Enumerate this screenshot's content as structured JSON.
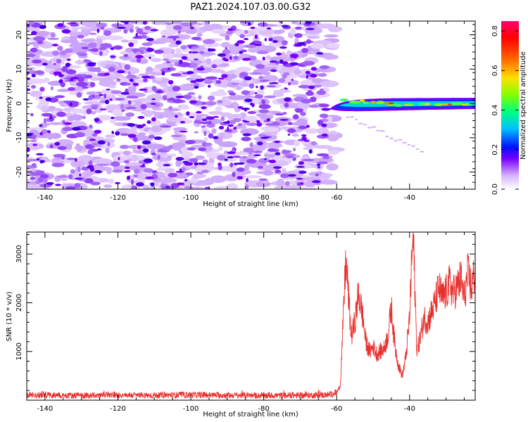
{
  "title": "PAZ1.2024.107.03.00.G32",
  "chart_data": [
    {
      "type": "heatmap",
      "xlabel": "Height of straight line (km)",
      "ylabel": "Frequency (Hz)",
      "xlim": [
        -145,
        -22
      ],
      "ylim": [
        -25,
        24
      ],
      "xticks": [
        "-140",
        "-120",
        "-100",
        "-80",
        "-60",
        "-40"
      ],
      "yticks": [
        "-20",
        "-10",
        "0",
        "10",
        "20"
      ],
      "colorbar": {
        "label": "Normalized spectral amplitude",
        "range": [
          0,
          0.85
        ],
        "ticks": [
          "0.0",
          "0.2",
          "0.4",
          "0.6",
          "0.8"
        ]
      },
      "description_values": {
        "noise_region_x": [
          -145,
          -62
        ],
        "noise_amplitude_range": [
          0.0,
          0.2
        ],
        "signal_region_x": [
          -62,
          -22
        ],
        "signal_frequency_hz": 0,
        "signal_amplitude_range": [
          0.1,
          0.85
        ]
      },
      "grid": false
    },
    {
      "type": "line",
      "xlabel": "Height of straight line (km)",
      "ylabel": "SNR (10 * v/v)",
      "xlim": [
        -145,
        -22
      ],
      "ylim": [
        0,
        3450
      ],
      "xticks": [
        "-140",
        "-120",
        "-100",
        "-80",
        "-60",
        "-40"
      ],
      "yticks": [
        "1000",
        "2000",
        "3000"
      ],
      "color": "#e8312f",
      "grid": false,
      "series": [
        {
          "x": [
            -145,
            -140,
            -130,
            -120,
            -110,
            -100,
            -90,
            -80,
            -70,
            -62,
            -60,
            -59,
            -58,
            -57.5,
            -57,
            -56,
            -55,
            -54,
            -53,
            -52,
            -51,
            -50,
            -49,
            -48,
            -47,
            -46,
            -45,
            -44,
            -43,
            -42,
            -41,
            -40,
            -39.5,
            -39,
            -38.5,
            -38,
            -37,
            -36,
            -35,
            -34,
            -33,
            -32,
            -31,
            -30,
            -29,
            -28,
            -27,
            -26,
            -25,
            -24,
            -23,
            -22
          ],
          "values": [
            100,
            110,
            95,
            105,
            100,
            110,
            100,
            95,
            100,
            110,
            150,
            300,
            2000,
            2850,
            2400,
            1300,
            1600,
            2200,
            1800,
            1200,
            1000,
            1100,
            950,
            1000,
            1050,
            1300,
            1900,
            1100,
            700,
            500,
            900,
            1700,
            2700,
            3400,
            2200,
            1000,
            1300,
            1700,
            1600,
            1800,
            2000,
            2300,
            2100,
            2200,
            2400,
            2200,
            2300,
            2500,
            2100,
            2600,
            2300,
            2700
          ]
        }
      ]
    }
  ]
}
